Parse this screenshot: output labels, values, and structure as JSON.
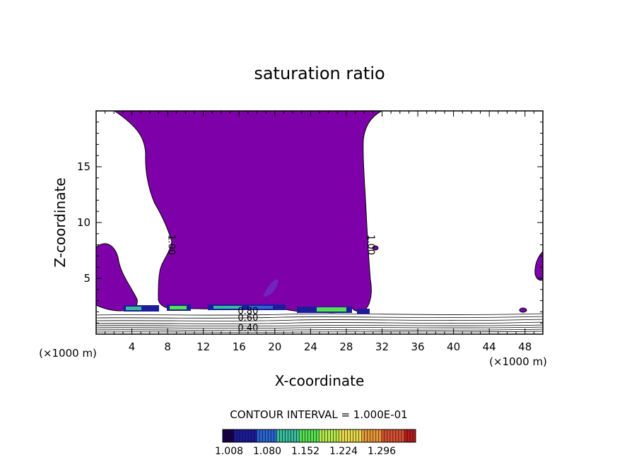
{
  "chart_data": {
    "type": "heatmap",
    "subtype": "filled-contour",
    "title": "saturation ratio",
    "xlabel": "X-coordinate",
    "ylabel": "Z-coordinate",
    "x_unit_label": "(×1000 m)",
    "xlim": [
      0,
      50
    ],
    "ylim": [
      0,
      20
    ],
    "x_ticks": [
      4,
      8,
      12,
      16,
      20,
      24,
      28,
      32,
      36,
      40,
      44,
      48
    ],
    "y_ticks": [
      5,
      10,
      15
    ],
    "contour_labels": [
      {
        "text": "1.00",
        "x": 8.1,
        "z": 8.0
      },
      {
        "text": "1.00",
        "x": 30.4,
        "z": 8.0
      },
      {
        "text": "0.80",
        "x": 17.0,
        "z": 1.8
      },
      {
        "text": "0.60",
        "x": 17.0,
        "z": 1.2
      },
      {
        "text": "0.40",
        "x": 17.0,
        "z": 0.3
      }
    ],
    "saturated_region_color": "#7d00a8",
    "contour_interval_text": "CONTOUR INTERVAL = 1.000E-01",
    "colorbar": {
      "ticks": [
        "1.008",
        "1.080",
        "1.152",
        "1.224",
        "1.296"
      ],
      "colors": [
        "#1a004a",
        "#1c1c9c",
        "#2c64d4",
        "#38bc9c",
        "#54e050",
        "#b4e84c",
        "#e8d84c",
        "#e89838",
        "#d85030",
        "#b81c1c"
      ]
    }
  }
}
